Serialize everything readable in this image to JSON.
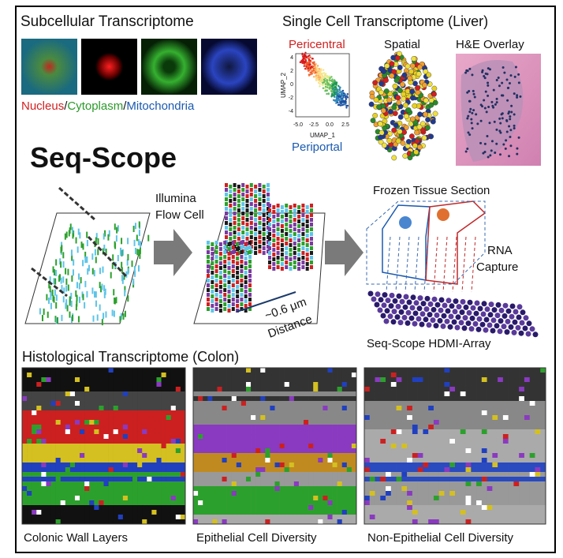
{
  "subcellular": {
    "title": "Subcellular Transcriptome",
    "legend": [
      "Nucleus",
      "/",
      "Cytoplasm",
      "/",
      "Mitochondria"
    ]
  },
  "single_cell": {
    "title": "Single Cell Transcriptome (Liver)",
    "pericentral": "Pericentral",
    "periportal": "Periportal",
    "spatial": "Spatial",
    "overlay": "H&E Overlay",
    "umap": {
      "y_label": "UMAP_2",
      "x_label": "UMAP_1",
      "xticks": [
        "-5.0",
        "-2.5",
        "0.0",
        "2.5"
      ],
      "yticks": [
        "4",
        "2",
        "0",
        "-2",
        "-4"
      ]
    }
  },
  "seq_scope": {
    "title": "Seq-Scope",
    "flow_cell": [
      "Illumina",
      "Flow Cell"
    ],
    "distance": [
      "~0.6 μm",
      "Distance"
    ],
    "tissue": "Frozen Tissue Section",
    "capture": [
      "RNA",
      "Capture"
    ],
    "array": "Seq-Scope HDMI-Array"
  },
  "histological": {
    "title": "Histological Transcriptome (Colon)",
    "panels": [
      "Colonic Wall Layers",
      "Epithelial Cell Diversity",
      "Non-Epithelial Cell Diversity"
    ]
  }
}
